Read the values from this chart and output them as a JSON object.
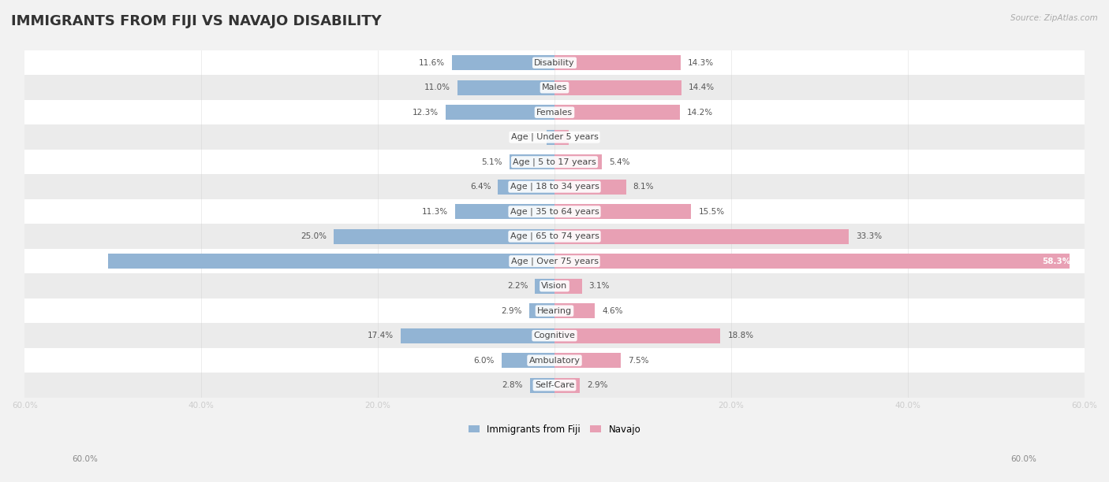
{
  "title": "IMMIGRANTS FROM FIJI VS NAVAJO DISABILITY",
  "source": "Source: ZipAtlas.com",
  "categories": [
    "Disability",
    "Males",
    "Females",
    "Age | Under 5 years",
    "Age | 5 to 17 years",
    "Age | 18 to 34 years",
    "Age | 35 to 64 years",
    "Age | 65 to 74 years",
    "Age | Over 75 years",
    "Vision",
    "Hearing",
    "Cognitive",
    "Ambulatory",
    "Self-Care"
  ],
  "fiji_values": [
    11.6,
    11.0,
    12.3,
    0.92,
    5.1,
    6.4,
    11.3,
    25.0,
    50.6,
    2.2,
    2.9,
    17.4,
    6.0,
    2.8
  ],
  "navajo_values": [
    14.3,
    14.4,
    14.2,
    1.6,
    5.4,
    8.1,
    15.5,
    33.3,
    58.3,
    3.1,
    4.6,
    18.8,
    7.5,
    2.9
  ],
  "fiji_color": "#92b4d4",
  "navajo_color": "#e8a0b4",
  "fiji_label": "Immigrants from Fiji",
  "navajo_label": "Navajo",
  "axis_max": 60.0,
  "bg_color": "#f2f2f2",
  "row_colors": [
    "#ffffff",
    "#ebebeb"
  ],
  "title_fontsize": 13,
  "label_fontsize": 8.0,
  "value_fontsize": 7.5,
  "legend_fontsize": 8.5,
  "bar_height": 0.6
}
